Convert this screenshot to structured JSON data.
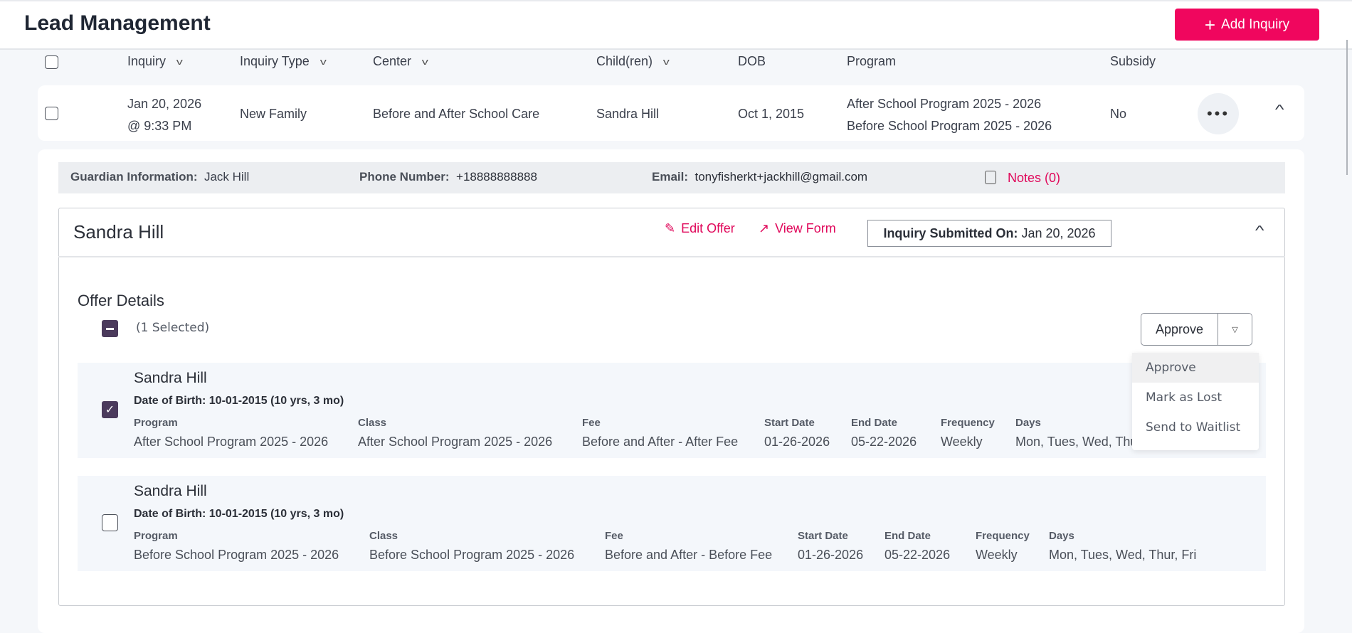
{
  "header": {
    "title": "Lead Management",
    "add_button": "Add Inquiry"
  },
  "table": {
    "columns": [
      "Inquiry",
      "Inquiry Type",
      "Center",
      "Child(ren)",
      "DOB",
      "Program",
      "Subsidy"
    ],
    "row": {
      "date": "Jan 20, 2026",
      "time": "@ 9:33 PM",
      "type": "New Family",
      "center": "Before and After School Care",
      "child": "Sandra Hill",
      "dob": "Oct 1, 2015",
      "programs": [
        "After School Program 2025 - 2026",
        "Before School Program 2025 - 2026"
      ],
      "subsidy": "No",
      "more": "•••"
    }
  },
  "guardian": {
    "label": "Guardian Information:",
    "name": "Jack Hill",
    "phone_label": "Phone Number:",
    "phone": "+18888888888",
    "email_label": "Email:",
    "email": "tonyfisherkt+jackhill@gmail.com",
    "notes": "Notes (0)"
  },
  "child_card": {
    "name": "Sandra Hill",
    "edit_offer": "Edit Offer",
    "view_form": "View Form",
    "submitted_label": "Inquiry Submitted On:",
    "submitted_date": "Jan 20, 2026",
    "offer_title": "Offer Details",
    "selected": "(1 Selected)",
    "approve": "Approve",
    "menu": [
      "Approve",
      "Mark as Lost",
      "Send to Waitlist"
    ],
    "labels": [
      "Program",
      "Class",
      "Fee",
      "Start Date",
      "End Date",
      "Frequency",
      "Days"
    ],
    "offers": [
      {
        "name": "Sandra Hill",
        "dob": "Date of Birth: 10-01-2015 (10 yrs, 3 mo)",
        "checked": true,
        "values": [
          "After School Program 2025 - 2026",
          "After School Program 2025 - 2026",
          "Before and After - After Fee",
          "01-26-2026",
          "05-22-2026",
          "Weekly",
          "Mon, Tues, Wed, Thur, Fri"
        ]
      },
      {
        "name": "Sandra Hill",
        "dob": "Date of Birth: 10-01-2015 (10 yrs, 3 mo)",
        "checked": false,
        "values": [
          "Before School Program 2025 - 2026",
          "Before School Program 2025 - 2026",
          "Before and After - Before Fee",
          "01-26-2026",
          "05-22-2026",
          "Weekly",
          "Mon, Tues, Wed, Thur, Fri"
        ]
      }
    ]
  },
  "colors": {
    "accent": "#f0065e",
    "checkbox": "#4b3a5c"
  }
}
